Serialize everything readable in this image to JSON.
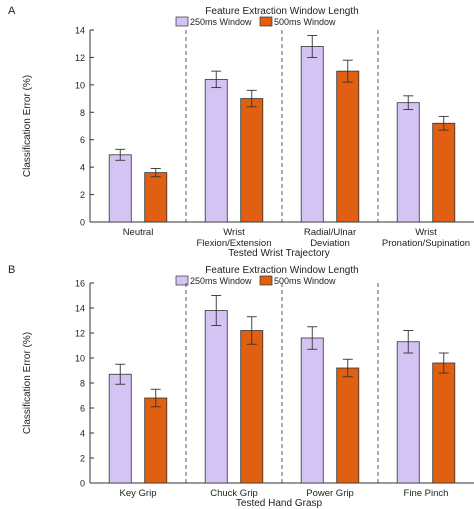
{
  "chart_data": [
    {
      "type": "bar",
      "panel_label": "A",
      "title": "Feature Extraction Window Length",
      "xlabel": "Tested Wrist Trajectory",
      "ylabel": "Classification Error (%)",
      "ylim": [
        0,
        14
      ],
      "yticks": [
        0,
        2,
        4,
        6,
        8,
        10,
        12,
        14
      ],
      "categories": [
        [
          "Neutral"
        ],
        [
          "Wrist",
          "Flexion/Extension"
        ],
        [
          "Radial/Ulnar",
          "Deviation"
        ],
        [
          "Wrist",
          "Pronation/Supination"
        ]
      ],
      "series": [
        {
          "name": "250ms Window",
          "color": "#d4c4f4",
          "values": [
            4.9,
            10.4,
            12.8,
            8.7
          ],
          "error": [
            0.4,
            0.6,
            0.8,
            0.5
          ]
        },
        {
          "name": "500ms Window",
          "color": "#e05f10",
          "values": [
            3.6,
            9.0,
            11.0,
            7.2
          ],
          "error": [
            0.3,
            0.6,
            0.8,
            0.5
          ]
        }
      ],
      "legend": "top-center",
      "grid": false,
      "group_dividers": "dashed"
    },
    {
      "type": "bar",
      "panel_label": "B",
      "title": "Feature Extraction Window Length",
      "xlabel": "Tested Hand Grasp",
      "ylabel": "Classification Error (%)",
      "ylim": [
        0,
        16
      ],
      "yticks": [
        0,
        2,
        4,
        6,
        8,
        10,
        12,
        14,
        16
      ],
      "categories": [
        [
          "Key Grip"
        ],
        [
          "Chuck Grip"
        ],
        [
          "Power Grip"
        ],
        [
          "Fine Pinch"
        ]
      ],
      "series": [
        {
          "name": "250ms Window",
          "color": "#d4c4f4",
          "values": [
            8.7,
            13.8,
            11.6,
            11.3
          ],
          "error": [
            0.8,
            1.2,
            0.9,
            0.9
          ]
        },
        {
          "name": "500ms Window",
          "color": "#e05f10",
          "values": [
            6.8,
            12.2,
            9.2,
            9.6
          ],
          "error": [
            0.7,
            1.1,
            0.7,
            0.8
          ]
        }
      ],
      "legend": "top-center",
      "grid": false,
      "group_dividers": "dashed"
    }
  ]
}
